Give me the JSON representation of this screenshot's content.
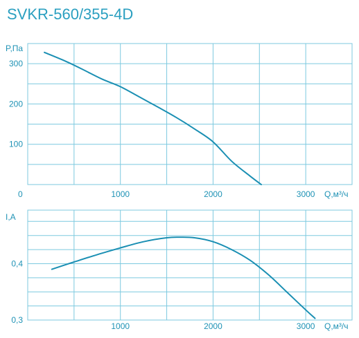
{
  "colors": {
    "accent": "#2a9fc0",
    "grid": "#7cc9df",
    "curve": "#1a8fb3"
  },
  "title": "SVKR-560/355-4D",
  "chart_data": [
    {
      "type": "line",
      "title": "",
      "xlabel": "Q,м³/ч",
      "ylabel": "P,Па",
      "xlim": [
        0,
        3500
      ],
      "ylim": [
        0,
        350
      ],
      "x_ticks": [
        0,
        1000,
        2000,
        3000
      ],
      "x_tick_labels": [
        "0",
        "1000",
        "2000",
        "3000"
      ],
      "y_ticks": [
        100,
        200,
        300
      ],
      "y_tick_labels": [
        "100",
        "200",
        "300"
      ],
      "grid": true,
      "series": [
        {
          "x": [
            180,
            400,
            600,
            800,
            1000,
            1200,
            1400,
            1600,
            1800,
            2000,
            2200,
            2400,
            2520
          ],
          "y": [
            328,
            307,
            285,
            262,
            243,
            218,
            193,
            167,
            138,
            106,
            58,
            21,
            0
          ]
        }
      ]
    },
    {
      "type": "line",
      "title": "",
      "xlabel": "Q,м³/ч",
      "ylabel": "I,A",
      "xlim": [
        0,
        3500
      ],
      "ylim": [
        0.3,
        0.495
      ],
      "x_ticks": [
        1000,
        2000,
        3000
      ],
      "x_tick_labels": [
        "1000",
        "2000",
        "3000"
      ],
      "y_ticks": [
        0.3,
        0.4
      ],
      "y_tick_labels": [
        "0,3",
        "0,4"
      ],
      "grid": true,
      "series": [
        {
          "x": [
            260,
            500,
            750,
            1000,
            1250,
            1500,
            1650,
            1800,
            2000,
            2200,
            2400,
            2600,
            2800,
            3000,
            3100
          ],
          "y": [
            0.39,
            0.403,
            0.416,
            0.428,
            0.439,
            0.446,
            0.447,
            0.446,
            0.439,
            0.425,
            0.406,
            0.38,
            0.349,
            0.318,
            0.303
          ]
        }
      ]
    }
  ]
}
